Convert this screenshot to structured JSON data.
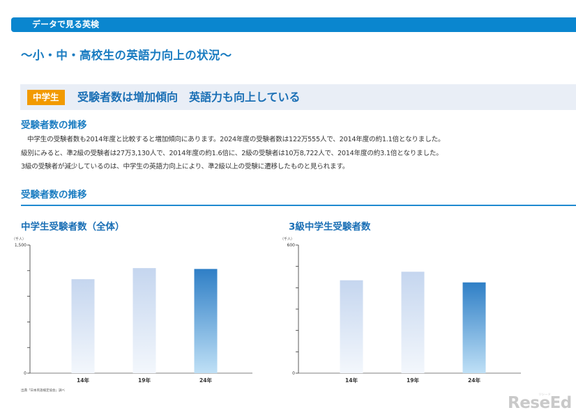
{
  "header": {
    "label": "データで見る英検"
  },
  "title": "〜小・中・高校生の英語力向上の状況〜",
  "section": {
    "badge": "中学生",
    "title": "受験者数は増加傾向　英語力も向上している"
  },
  "trend_heading": "受験者数の推移",
  "paragraph": [
    "中学生の受験者数も2014年度と比較すると増加傾向にあります。2024年度の受験者数は122万555人で、2014年度の約1.1倍となりました。",
    "級別にみると、準2級の受験者は27万3,130人で、2014年度の約1.6倍に、2級の受験者は10万8,722人で、2014年度の約3.1倍となりました。",
    "3級の受験者が減少しているのは、中学生の英語力向上により、準2級以上の受験に遷移したものと見られます。"
  ],
  "charts_heading": "受験者数の推移",
  "source_note": "出典「日本英語検定協会」調べ",
  "logo": {
    "text": "ReseEd",
    "sub": "リシード"
  },
  "colors": {
    "accent": "#1a7cc1",
    "badge": "#f29a00",
    "bar_light": "#c5d6ef",
    "bar_highlight": "#2f7fc6"
  },
  "chart_data": [
    {
      "type": "bar",
      "title": "中学生受験者数（全体）",
      "unit_label": "（千人）",
      "categories": [
        "14年",
        "19年",
        "24年"
      ],
      "values": [
        1100,
        1230,
        1220
      ],
      "ylim": [
        0,
        1500
      ],
      "ytick_labels": [
        "0",
        "1,500"
      ],
      "yticks": [
        0,
        300,
        600,
        900,
        1200,
        1500
      ],
      "highlight_index": 2,
      "grid": false
    },
    {
      "type": "bar",
      "title": "3級中学生受験者数",
      "unit_label": "（千人）",
      "categories": [
        "14年",
        "19年",
        "24年"
      ],
      "values": [
        435,
        475,
        425
      ],
      "ylim": [
        0,
        600
      ],
      "ytick_labels": [
        "0",
        "600"
      ],
      "yticks": [
        0,
        100,
        200,
        300,
        400,
        500,
        600
      ],
      "highlight_index": 2,
      "grid": false
    }
  ]
}
